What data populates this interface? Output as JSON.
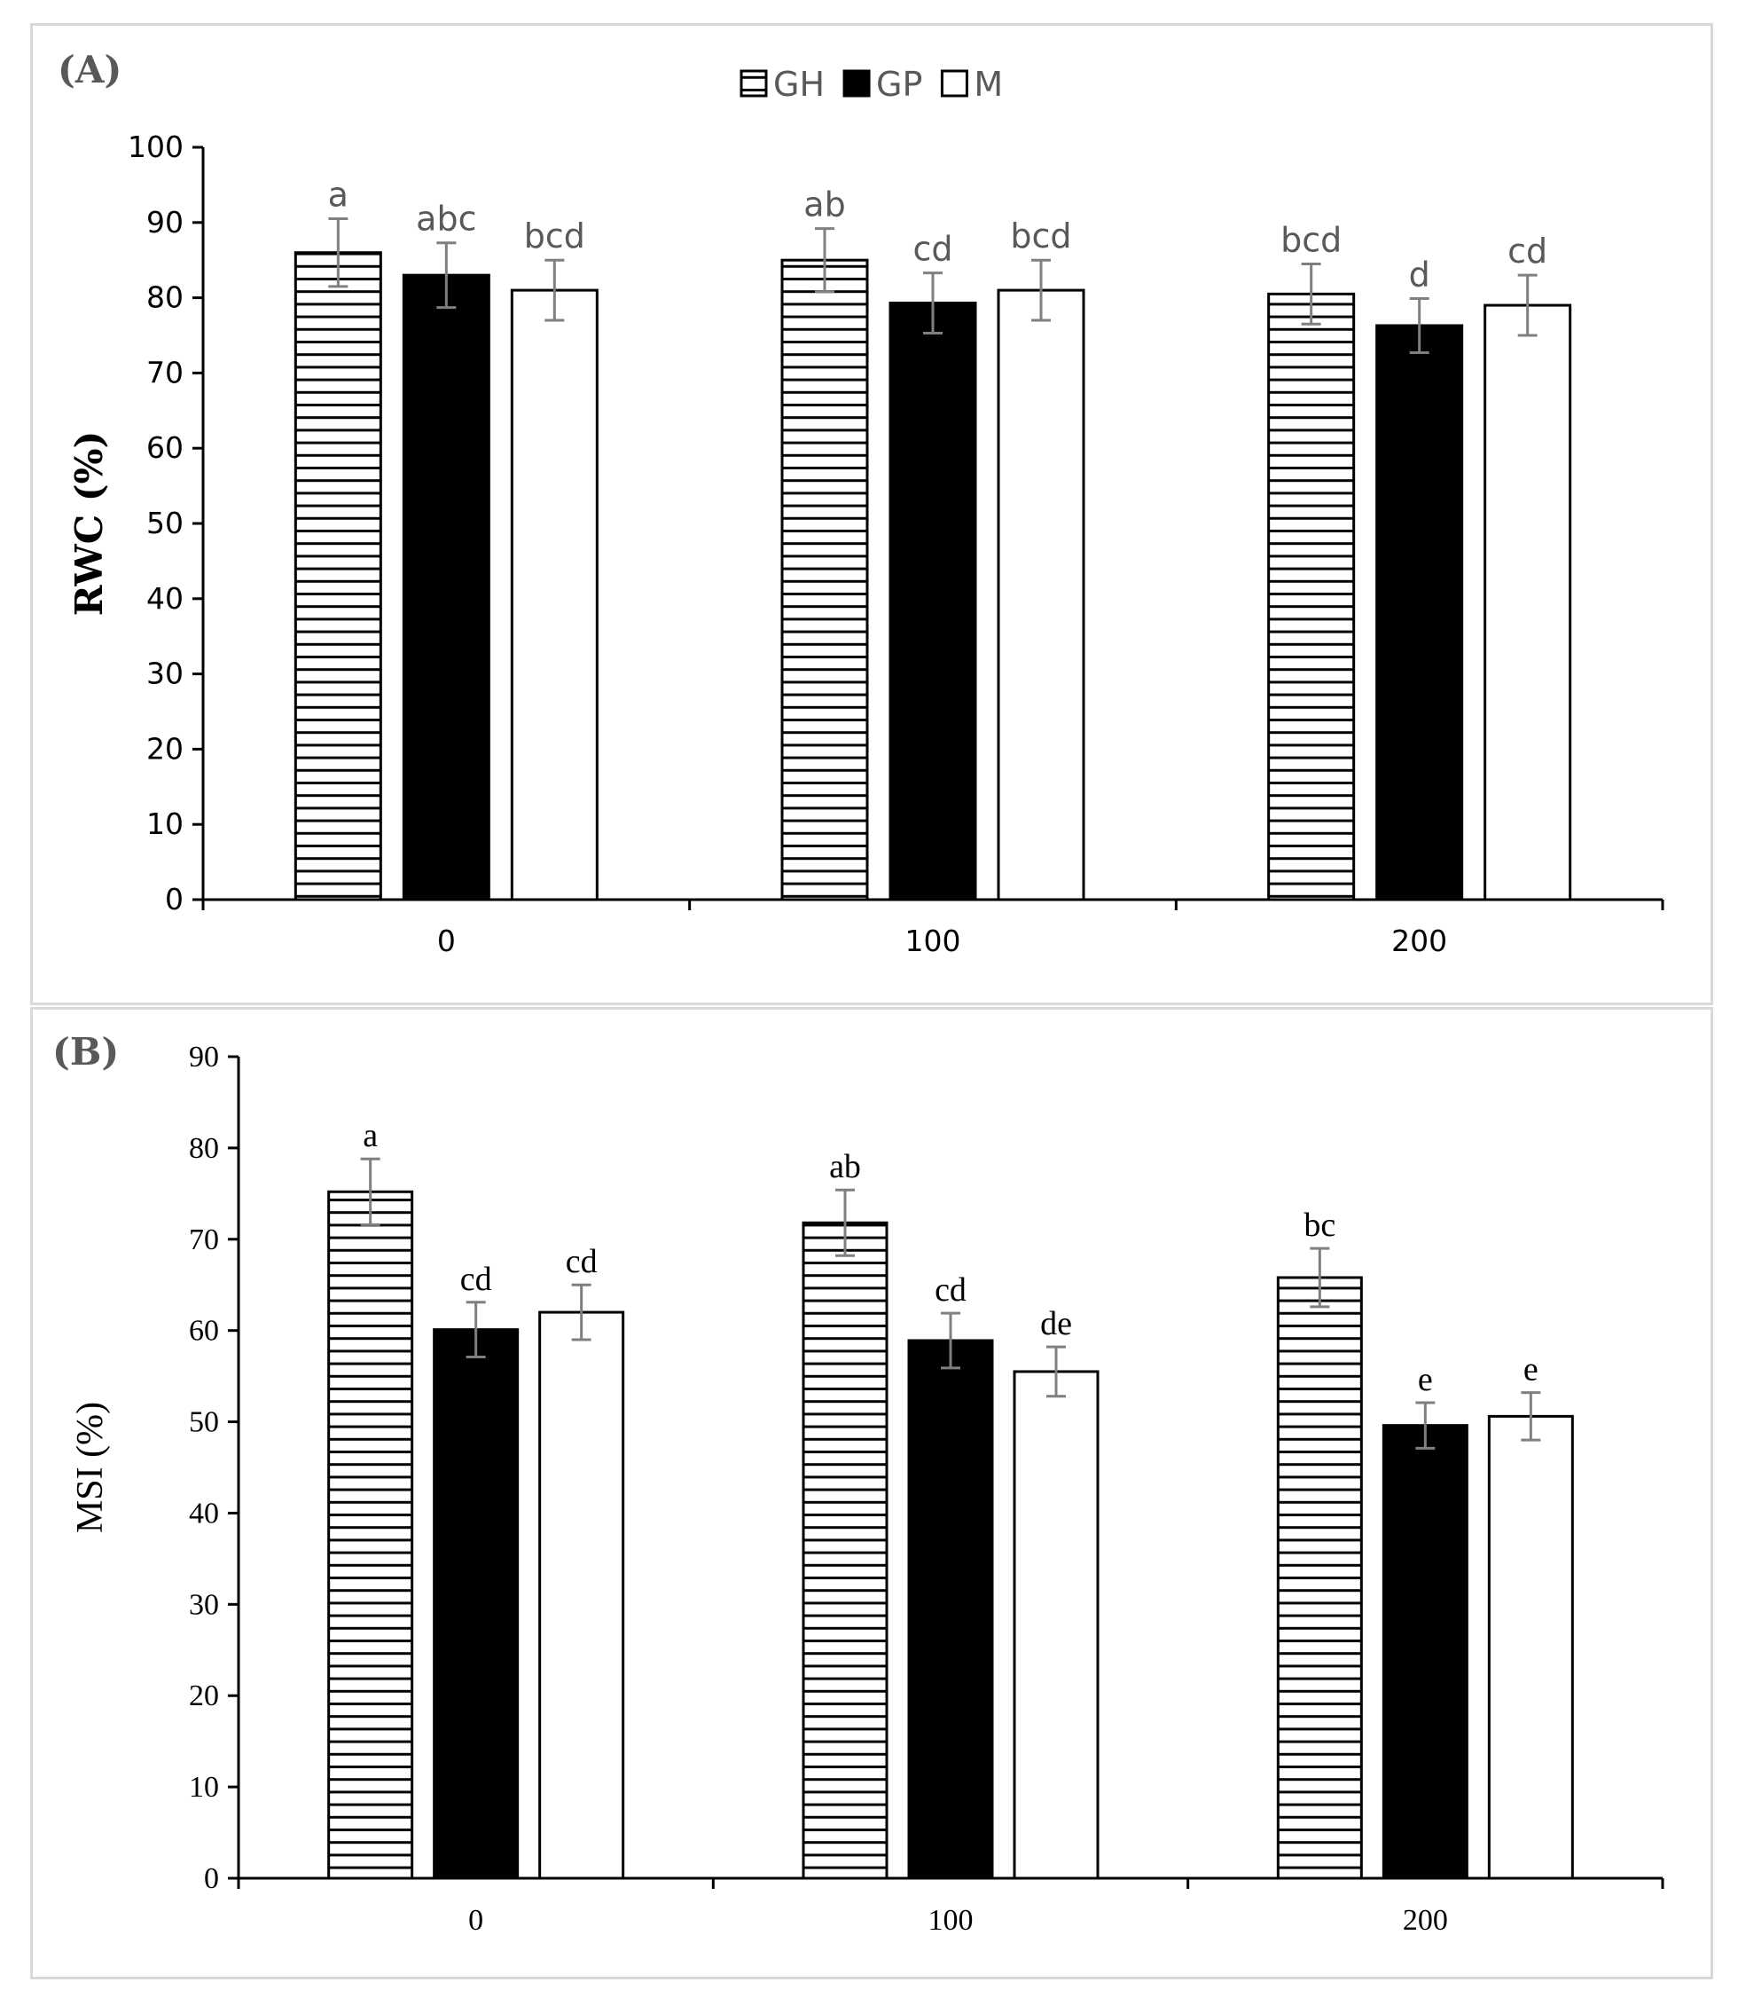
{
  "chart_data": [
    {
      "type": "bar",
      "panel_label": "(A)",
      "categories": [
        "0",
        "100",
        "200"
      ],
      "series": [
        {
          "name": "GH",
          "pattern": "horizontal-stripes",
          "values": [
            86,
            85,
            80.5
          ],
          "errors": [
            4.5,
            4.2,
            4.0
          ],
          "letters": [
            "a",
            "ab",
            "bcd"
          ]
        },
        {
          "name": "GP",
          "pattern": "solid-black",
          "values": [
            83,
            79.3,
            76.3
          ],
          "errors": [
            4.3,
            4.0,
            3.6
          ],
          "letters": [
            "abc",
            "cd",
            "d"
          ]
        },
        {
          "name": "M",
          "pattern": "white",
          "values": [
            81,
            81,
            79
          ],
          "errors": [
            4.0,
            4.0,
            4.0
          ],
          "letters": [
            "bcd",
            "bcd",
            "cd"
          ]
        }
      ],
      "ylabel": "RWC (%)",
      "xlabel": "",
      "ylim": [
        0,
        100
      ],
      "yticks": [
        0,
        10,
        20,
        30,
        40,
        50,
        60,
        70,
        80,
        90,
        100
      ],
      "legend": "top-center"
    },
    {
      "type": "bar",
      "panel_label": "(B)",
      "categories": [
        "0",
        "100",
        "200"
      ],
      "series": [
        {
          "name": "GH",
          "pattern": "horizontal-stripes",
          "values": [
            75.2,
            71.8,
            65.8
          ],
          "errors": [
            3.6,
            3.6,
            3.2
          ],
          "letters": [
            "a",
            "ab",
            "bc"
          ]
        },
        {
          "name": "GP",
          "pattern": "solid-black",
          "values": [
            60.1,
            58.9,
            49.6
          ],
          "errors": [
            3.0,
            3.0,
            2.5
          ],
          "letters": [
            "cd",
            "cd",
            "e"
          ]
        },
        {
          "name": "M",
          "pattern": "white",
          "values": [
            62,
            55.5,
            50.6
          ],
          "errors": [
            3.0,
            2.7,
            2.6
          ],
          "letters": [
            "cd",
            "de",
            "e"
          ]
        }
      ],
      "ylabel": "MSI (%)",
      "xlabel": "",
      "ylim": [
        0,
        90
      ],
      "yticks": [
        0,
        10,
        20,
        30,
        40,
        50,
        60,
        70,
        80,
        90
      ],
      "legend": "none"
    }
  ]
}
